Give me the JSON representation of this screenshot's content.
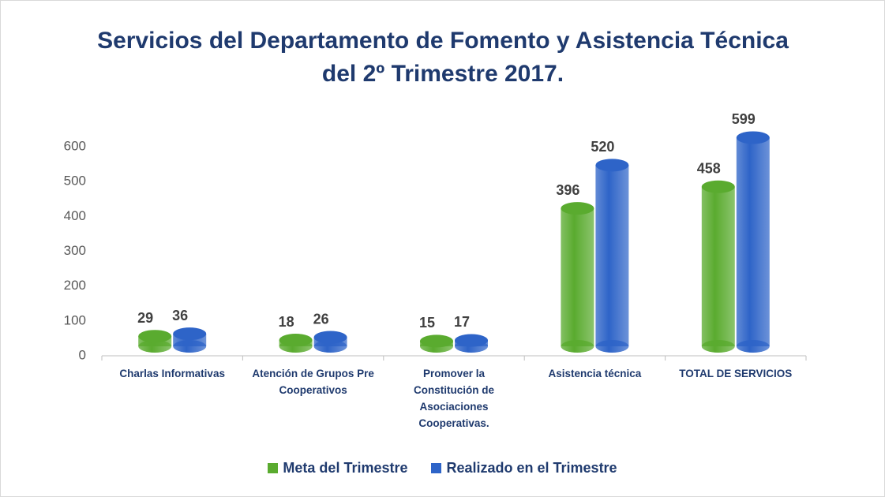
{
  "chart_data": {
    "type": "bar",
    "title": "Servicios del Departamento de Fomento y Asistencia Técnica del 2º Trimestre 2017.",
    "categories": [
      "Charlas Informativas",
      "Atención de Grupos Pre Cooperativos",
      "Promover la Constitución de Asociaciones Cooperativas.",
      "Asistencia técnica",
      "TOTAL DE SERVICIOS"
    ],
    "series": [
      {
        "name": "Meta del Trimestre",
        "color": "#5aab2f",
        "values": [
          29,
          18,
          15,
          396,
          458
        ]
      },
      {
        "name": "Realizado  en el Trimestre",
        "color": "#2e64c8",
        "values": [
          36,
          26,
          17,
          520,
          599
        ]
      }
    ],
    "ylim": [
      0,
      600
    ],
    "yticks": [
      0,
      100,
      200,
      300,
      400,
      500,
      600
    ],
    "legend": "bottom"
  }
}
